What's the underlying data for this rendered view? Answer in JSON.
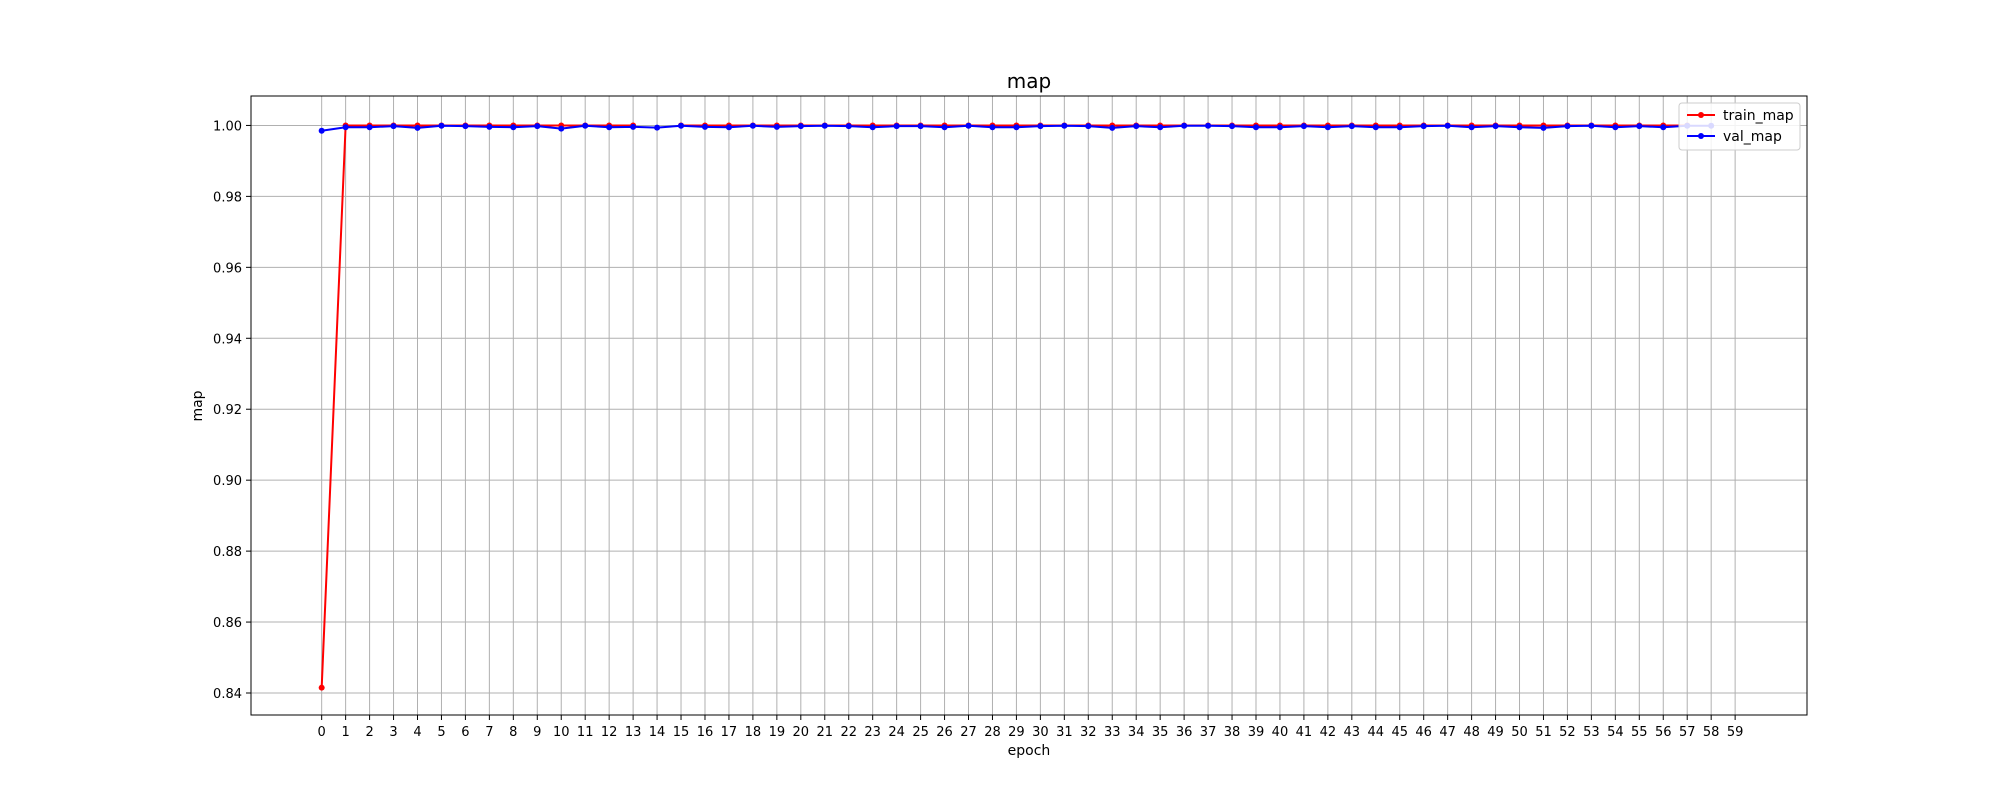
{
  "chart_data": {
    "type": "line",
    "title": "map",
    "xlabel": "epoch",
    "ylabel": "map",
    "x": [
      0,
      1,
      2,
      3,
      4,
      5,
      6,
      7,
      8,
      9,
      10,
      11,
      12,
      13,
      14,
      15,
      16,
      17,
      18,
      19,
      20,
      21,
      22,
      23,
      24,
      25,
      26,
      27,
      28,
      29,
      30,
      31,
      32,
      33,
      34,
      35,
      36,
      37,
      38,
      39,
      40,
      41,
      42,
      43,
      44,
      45,
      46,
      47,
      48,
      49,
      50,
      51,
      52,
      53,
      54,
      55,
      56,
      57,
      58,
      59
    ],
    "xticks": [
      0,
      1,
      2,
      3,
      4,
      5,
      6,
      7,
      8,
      9,
      10,
      11,
      12,
      13,
      14,
      15,
      16,
      17,
      18,
      19,
      20,
      21,
      22,
      23,
      24,
      25,
      26,
      27,
      28,
      29,
      30,
      31,
      32,
      33,
      34,
      35,
      36,
      37,
      38,
      39,
      40,
      41,
      42,
      43,
      44,
      45,
      46,
      47,
      48,
      49,
      50,
      51,
      52,
      53,
      54,
      55,
      56,
      57,
      58,
      59
    ],
    "xlim": [
      -2.95,
      62.0
    ],
    "ylim": [
      0.8338,
      1.0083
    ],
    "yticks": [
      0.84,
      0.86,
      0.88,
      0.9,
      0.92,
      0.94,
      0.96,
      0.98,
      1.0
    ],
    "ytick_labels": [
      "0.84",
      "0.86",
      "0.88",
      "0.90",
      "0.92",
      "0.94",
      "0.96",
      "0.98",
      "1.00"
    ],
    "grid": true,
    "legend_position": "top-right",
    "series": [
      {
        "name": "train_map",
        "color": "#ff0000",
        "values": [
          0.8415,
          1.0,
          1.0,
          1.0,
          1.0,
          1.0,
          1.0,
          1.0,
          1.0,
          1.0,
          1.0,
          1.0,
          1.0,
          1.0,
          null,
          1.0,
          1.0,
          1.0,
          1.0,
          1.0,
          1.0,
          1.0,
          1.0,
          1.0,
          1.0,
          1.0,
          1.0,
          1.0,
          1.0,
          1.0,
          1.0,
          1.0,
          1.0,
          1.0,
          1.0,
          1.0,
          1.0,
          1.0,
          1.0,
          1.0,
          1.0,
          1.0,
          1.0,
          1.0,
          1.0,
          1.0,
          1.0,
          1.0,
          1.0,
          1.0,
          1.0,
          1.0,
          1.0,
          1.0,
          1.0,
          1.0,
          1.0,
          1.0,
          null,
          null
        ]
      },
      {
        "name": "val_map",
        "color": "#0000ff",
        "values": [
          0.9985,
          0.9995,
          0.9995,
          0.9998,
          0.9993,
          0.9999,
          0.9998,
          0.9996,
          0.9995,
          0.9998,
          0.9991,
          0.9999,
          0.9995,
          0.9996,
          0.9994,
          0.9999,
          0.9996,
          0.9995,
          0.9999,
          0.9996,
          0.9998,
          0.9999,
          0.9998,
          0.9995,
          0.9998,
          0.9998,
          0.9995,
          0.9999,
          0.9995,
          0.9995,
          0.9998,
          0.9999,
          0.9998,
          0.9993,
          0.9998,
          0.9995,
          0.9999,
          0.9999,
          0.9998,
          0.9995,
          0.9995,
          0.9998,
          0.9995,
          0.9998,
          0.9995,
          0.9995,
          0.9998,
          0.9999,
          0.9995,
          0.9998,
          0.9995,
          0.9993,
          0.9998,
          0.9999,
          0.9995,
          0.9998,
          0.9995,
          0.9999,
          0.9999,
          null
        ]
      }
    ]
  }
}
